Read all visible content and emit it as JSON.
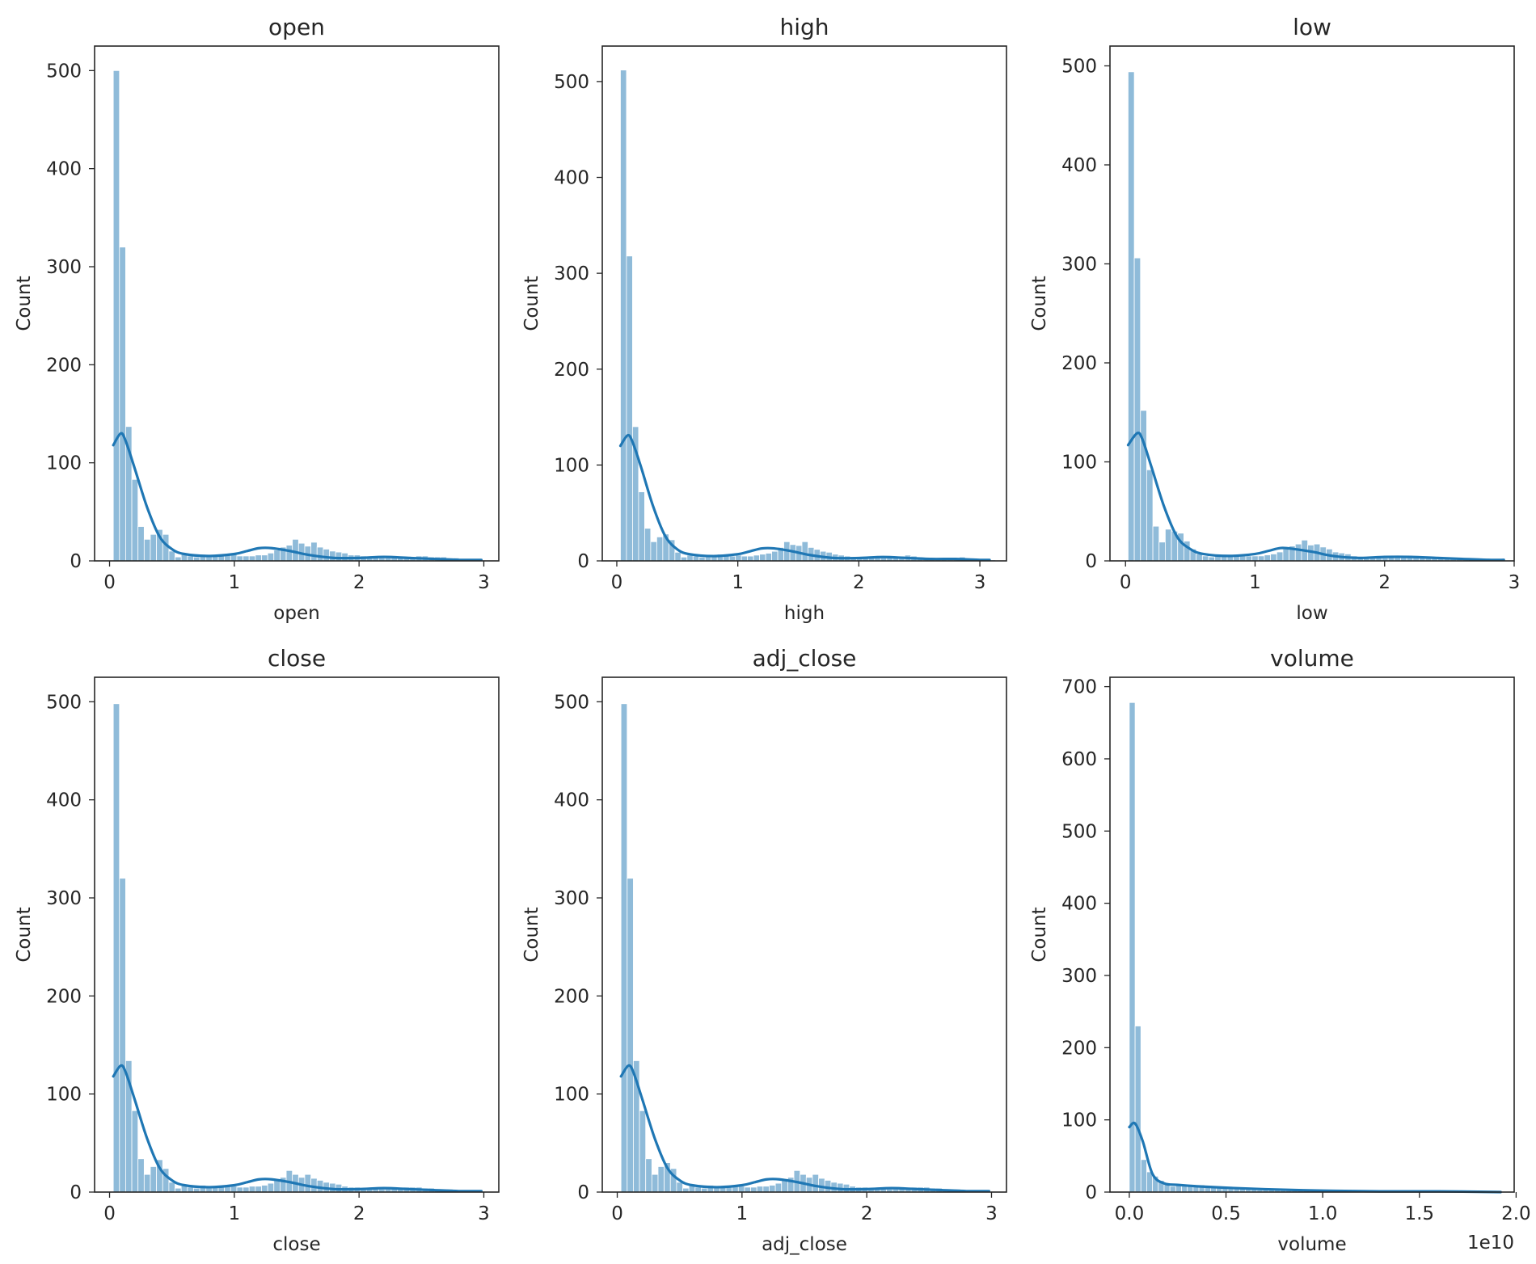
{
  "chart_data": [
    {
      "type": "bar",
      "title": "open",
      "xlabel": "open",
      "ylabel": "Count",
      "xlim": [
        -0.12,
        3.12
      ],
      "ylim": [
        0,
        525
      ],
      "xticks": [
        0,
        1,
        2,
        3
      ],
      "xtick_labels": [
        "0",
        "1",
        "2",
        "3"
      ],
      "yticks": [
        0,
        100,
        200,
        300,
        400,
        500
      ],
      "ytick_labels": [
        "0",
        "100",
        "200",
        "300",
        "400",
        "500"
      ],
      "offset_label": "",
      "bin_start": 0.03,
      "bin_width": 0.0495,
      "counts": [
        500,
        320,
        137,
        83,
        35,
        22,
        27,
        32,
        27,
        10,
        4,
        8,
        5,
        4,
        6,
        5,
        5,
        6,
        6,
        7,
        5,
        5,
        5,
        6,
        6,
        8,
        11,
        14,
        16,
        22,
        18,
        15,
        19,
        14,
        12,
        10,
        9,
        8,
        6,
        6,
        5,
        4,
        4,
        3,
        3,
        3,
        4,
        4,
        4,
        5,
        5,
        4,
        4,
        4,
        3,
        3,
        2,
        2,
        2
      ],
      "kde": {
        "x": [
          0.03,
          0.09,
          0.13,
          0.2,
          0.3,
          0.4,
          0.5,
          0.6,
          0.8,
          1.0,
          1.1,
          1.2,
          1.3,
          1.45,
          1.6,
          1.8,
          2.0,
          2.2,
          2.4,
          2.6,
          2.8,
          2.98
        ],
        "y": [
          118,
          130,
          122,
          95,
          55,
          25,
          12,
          7,
          5,
          7,
          10,
          13,
          13,
          10,
          6,
          3,
          3,
          4,
          3,
          2,
          1,
          1
        ]
      }
    },
    {
      "type": "bar",
      "title": "high",
      "xlabel": "high",
      "ylabel": "Count",
      "xlim": [
        -0.12,
        3.22
      ],
      "ylim": [
        0,
        537
      ],
      "xticks": [
        0,
        1,
        2,
        3
      ],
      "xtick_labels": [
        "0",
        "1",
        "2",
        "3"
      ],
      "yticks": [
        0,
        100,
        200,
        300,
        400,
        500
      ],
      "ytick_labels": [
        "0",
        "100",
        "200",
        "300",
        "400",
        "500"
      ],
      "offset_label": "",
      "bin_start": 0.03,
      "bin_width": 0.05,
      "counts": [
        512,
        318,
        140,
        72,
        34,
        20,
        25,
        28,
        22,
        9,
        4,
        6,
        5,
        4,
        5,
        6,
        7,
        6,
        5,
        6,
        5,
        5,
        6,
        7,
        8,
        10,
        14,
        20,
        17,
        16,
        20,
        14,
        12,
        10,
        9,
        7,
        6,
        5,
        4,
        4,
        3,
        3,
        3,
        3,
        4,
        4,
        5,
        6,
        5,
        4,
        3,
        3,
        3,
        2,
        2,
        2,
        4,
        2,
        2,
        2,
        2,
        1
      ],
      "kde": {
        "x": [
          0.03,
          0.09,
          0.13,
          0.2,
          0.3,
          0.4,
          0.5,
          0.6,
          0.8,
          1.0,
          1.1,
          1.2,
          1.3,
          1.45,
          1.6,
          1.8,
          2.0,
          2.2,
          2.4,
          2.6,
          2.8,
          3.0,
          3.08
        ],
        "y": [
          120,
          131,
          124,
          98,
          57,
          26,
          12,
          7,
          5,
          7,
          10,
          13,
          13,
          10,
          6,
          3,
          3,
          4,
          3,
          2,
          2,
          1,
          1
        ]
      }
    },
    {
      "type": "bar",
      "title": "low",
      "xlabel": "low",
      "ylabel": "Count",
      "xlim": [
        -0.12,
        3.0
      ],
      "ylim": [
        0,
        520
      ],
      "xticks": [
        0,
        1,
        2,
        3
      ],
      "xtick_labels": [
        "0",
        "1",
        "2",
        "3"
      ],
      "yticks": [
        0,
        100,
        200,
        300,
        400,
        500
      ],
      "ytick_labels": [
        "0",
        "100",
        "200",
        "300",
        "400",
        "500"
      ],
      "offset_label": "",
      "bin_start": 0.02,
      "bin_width": 0.0478,
      "counts": [
        494,
        306,
        152,
        92,
        35,
        19,
        32,
        30,
        28,
        20,
        12,
        7,
        5,
        4,
        6,
        5,
        5,
        6,
        6,
        5,
        5,
        5,
        6,
        7,
        9,
        12,
        15,
        17,
        21,
        16,
        17,
        14,
        12,
        9,
        8,
        7,
        5,
        4,
        4,
        3,
        3,
        3,
        4,
        5,
        5,
        5,
        4,
        4,
        3,
        3,
        3,
        2,
        2,
        2,
        2,
        2,
        2,
        1,
        1,
        1
      ],
      "kde": {
        "x": [
          0.02,
          0.09,
          0.13,
          0.2,
          0.3,
          0.4,
          0.5,
          0.6,
          0.8,
          1.0,
          1.1,
          1.2,
          1.3,
          1.45,
          1.6,
          1.8,
          2.0,
          2.2,
          2.4,
          2.6,
          2.8,
          2.92
        ],
        "y": [
          117,
          129,
          123,
          95,
          54,
          24,
          12,
          7,
          5,
          7,
          10,
          13,
          12,
          9,
          5,
          3,
          4,
          4,
          3,
          2,
          1,
          1
        ]
      }
    },
    {
      "type": "bar",
      "title": "close",
      "xlabel": "close",
      "ylabel": "Count",
      "xlim": [
        -0.12,
        3.12
      ],
      "ylim": [
        0,
        525
      ],
      "xticks": [
        0,
        1,
        2,
        3
      ],
      "xtick_labels": [
        "0",
        "1",
        "2",
        "3"
      ],
      "yticks": [
        0,
        100,
        200,
        300,
        400,
        500
      ],
      "ytick_labels": [
        "0",
        "100",
        "200",
        "300",
        "400",
        "500"
      ],
      "offset_label": "",
      "bin_start": 0.03,
      "bin_width": 0.0495,
      "counts": [
        498,
        320,
        134,
        83,
        34,
        18,
        26,
        33,
        24,
        10,
        4,
        7,
        5,
        4,
        7,
        5,
        5,
        6,
        6,
        6,
        5,
        5,
        6,
        6,
        7,
        9,
        12,
        15,
        22,
        18,
        15,
        18,
        14,
        12,
        10,
        9,
        8,
        6,
        5,
        5,
        4,
        4,
        3,
        3,
        3,
        4,
        4,
        5,
        5,
        5,
        4,
        4,
        3,
        3,
        3,
        2,
        2,
        2,
        2
      ],
      "kde": {
        "x": [
          0.03,
          0.09,
          0.13,
          0.2,
          0.3,
          0.4,
          0.5,
          0.6,
          0.8,
          1.0,
          1.1,
          1.2,
          1.3,
          1.45,
          1.6,
          1.8,
          2.0,
          2.2,
          2.4,
          2.6,
          2.8,
          2.98
        ],
        "y": [
          118,
          129,
          122,
          95,
          55,
          25,
          12,
          7,
          5,
          7,
          10,
          13,
          13,
          10,
          6,
          3,
          3,
          4,
          3,
          2,
          1,
          1
        ]
      }
    },
    {
      "type": "bar",
      "title": "adj_close",
      "xlabel": "adj_close",
      "ylabel": "Count",
      "xlim": [
        -0.12,
        3.12
      ],
      "ylim": [
        0,
        525
      ],
      "xticks": [
        0,
        1,
        2,
        3
      ],
      "xtick_labels": [
        "0",
        "1",
        "2",
        "3"
      ],
      "yticks": [
        0,
        100,
        200,
        300,
        400,
        500
      ],
      "ytick_labels": [
        "0",
        "100",
        "200",
        "300",
        "400",
        "500"
      ],
      "offset_label": "",
      "bin_start": 0.03,
      "bin_width": 0.0495,
      "counts": [
        498,
        320,
        134,
        83,
        34,
        18,
        26,
        30,
        24,
        10,
        4,
        7,
        5,
        4,
        7,
        5,
        5,
        6,
        6,
        6,
        5,
        5,
        6,
        6,
        7,
        9,
        12,
        15,
        22,
        18,
        15,
        18,
        14,
        12,
        10,
        9,
        8,
        6,
        5,
        5,
        4,
        4,
        3,
        3,
        3,
        4,
        4,
        5,
        5,
        5,
        4,
        4,
        3,
        3,
        3,
        2,
        2,
        2,
        2
      ],
      "kde": {
        "x": [
          0.03,
          0.09,
          0.13,
          0.2,
          0.3,
          0.4,
          0.5,
          0.6,
          0.8,
          1.0,
          1.1,
          1.2,
          1.3,
          1.45,
          1.6,
          1.8,
          2.0,
          2.2,
          2.4,
          2.6,
          2.8,
          2.98
        ],
        "y": [
          118,
          129,
          122,
          95,
          55,
          25,
          12,
          7,
          5,
          7,
          10,
          13,
          13,
          10,
          6,
          3,
          3,
          4,
          3,
          2,
          1,
          1
        ]
      }
    },
    {
      "type": "bar",
      "title": "volume",
      "xlabel": "volume",
      "ylabel": "Count",
      "xlim": [
        -0.1,
        1.99
      ],
      "ylim": [
        0,
        713
      ],
      "xticks": [
        0,
        0.5,
        1.0,
        1.5,
        2.0
      ],
      "xtick_labels": [
        "0.0",
        "0.5",
        "1.0",
        "1.5",
        "2.0"
      ],
      "yticks": [
        0,
        100,
        200,
        300,
        400,
        500,
        600,
        700
      ],
      "ytick_labels": [
        "0",
        "100",
        "200",
        "300",
        "400",
        "500",
        "600",
        "700"
      ],
      "offset_label": "1e10",
      "bin_start": 0.0,
      "bin_width": 0.03,
      "counts": [
        678,
        230,
        45,
        28,
        22,
        16,
        10,
        8,
        10,
        9,
        10,
        9,
        10,
        8,
        8,
        7,
        6,
        6,
        5,
        5,
        4,
        4,
        3,
        3,
        3,
        3,
        2,
        2,
        2,
        2,
        2,
        1,
        1,
        1,
        1,
        1,
        1,
        1,
        1,
        1,
        1,
        1,
        0,
        1,
        0,
        1,
        0,
        0,
        1,
        0,
        0,
        0,
        0,
        0,
        1,
        0,
        0,
        0,
        0,
        0,
        0,
        0,
        0,
        1
      ],
      "kde": {
        "x": [
          0.0,
          0.03,
          0.07,
          0.12,
          0.18,
          0.25,
          0.35,
          0.5,
          0.7,
          1.0,
          1.3,
          1.6,
          1.92
        ],
        "y": [
          90,
          95,
          70,
          25,
          12,
          10,
          8,
          6,
          4,
          2,
          1,
          1,
          0
        ]
      }
    }
  ]
}
